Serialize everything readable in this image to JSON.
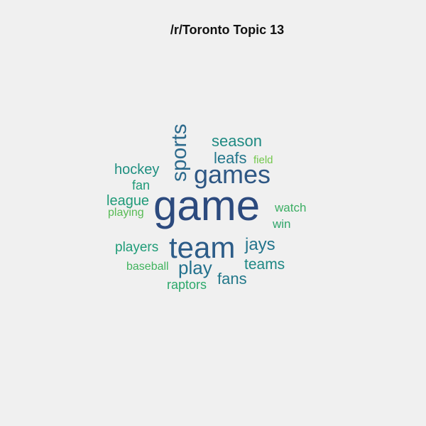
{
  "title": "/r/Toronto Topic 13",
  "words": {
    "game": "game",
    "team": "team",
    "games": "games",
    "sports": "sports",
    "season": "season",
    "leafs": "leafs",
    "field": "field",
    "hockey": "hockey",
    "fan": "fan",
    "league": "league",
    "playing": "playing",
    "watch": "watch",
    "win": "win",
    "players": "players",
    "jays": "jays",
    "teams": "teams",
    "play": "play",
    "fans": "fans",
    "baseball": "baseball",
    "raptors": "raptors"
  },
  "colors": {
    "background": "#f0f0f0",
    "dark_blue": "#2c4a7e",
    "teal": "#1f8a82",
    "light_green": "#72c74b"
  }
}
